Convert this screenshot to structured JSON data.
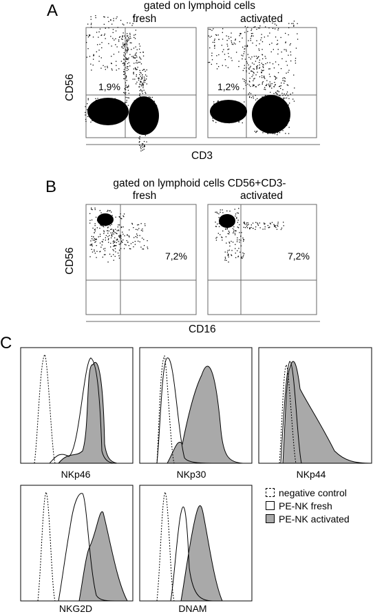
{
  "panelA": {
    "label": "A",
    "header": "gated on lymphoid cells",
    "left_title": "fresh",
    "right_title": "activated",
    "y_axis": "CD56",
    "x_axis": "CD3",
    "left_pct": "1,9%",
    "right_pct": "1,2%"
  },
  "panelB": {
    "label": "B",
    "header": "gated on lymphoid cells CD56+CD3-",
    "left_title": "fresh",
    "right_title": "activated",
    "y_axis": "CD56",
    "x_axis": "CD16",
    "left_pct": "7,2%",
    "right_pct": "7,2%"
  },
  "panelC": {
    "label": "C",
    "histograms": [
      {
        "marker": "NKp46"
      },
      {
        "marker": "NKp30"
      },
      {
        "marker": "NKp44"
      },
      {
        "marker": "NKG2D"
      },
      {
        "marker": "DNAM"
      }
    ],
    "legend": [
      {
        "label": "negative control",
        "style": "dashed"
      },
      {
        "label": "PE-NK fresh",
        "style": "open"
      },
      {
        "label": "PE-NK activated",
        "style": "filled"
      }
    ],
    "colors": {
      "filled": "#a9a9a9",
      "line": "#000000"
    }
  }
}
